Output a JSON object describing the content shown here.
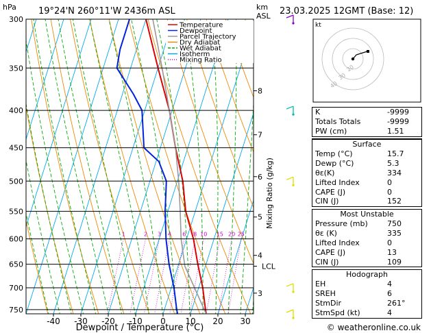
{
  "header": {
    "p_unit": "hPa",
    "location": "19°24'N  260°11'W  2436m  ASL",
    "km_unit": "km",
    "km_sub": "ASL",
    "datetime": "23.03.2025  12GMT  (Base: 12)"
  },
  "chart_data": {
    "type": "line",
    "title": "",
    "xlabel": "Dewpoint / Temperature (°C)",
    "ylabel": "hPa",
    "xlim": [
      -45,
      32
    ],
    "ylim": [
      760,
      300
    ],
    "yscale": "log",
    "pressure_ticks": [
      300,
      350,
      400,
      450,
      500,
      550,
      600,
      650,
      700,
      750
    ],
    "temp_ticks": [
      -40,
      -30,
      -20,
      -10,
      0,
      10,
      20,
      30
    ],
    "km_ticks": [
      {
        "label": "8",
        "p": 376
      },
      {
        "label": "7",
        "p": 432
      },
      {
        "label": "6",
        "p": 493
      },
      {
        "label": "5",
        "p": 560
      },
      {
        "label": "4",
        "p": 632
      },
      {
        "label": "3",
        "p": 712
      }
    ],
    "lcl": {
      "label": "LCL",
      "p": 654
    },
    "mixing_ratio_axis_label": "Mixing Ratio (g/kg)",
    "mixing_ratio_labels": [
      "1",
      "2",
      "3",
      "4",
      "6",
      "8",
      "10",
      "15",
      "20",
      "25"
    ],
    "mixing_ratio_values": [
      1,
      2,
      3,
      4,
      6,
      8,
      10,
      15,
      20,
      25
    ],
    "legend": [
      "Temperature",
      "Dewpoint",
      "Parcel Trajectory",
      "Dry Adiabat",
      "Wet Adiabat",
      "Isotherm",
      "Mixing Ratio"
    ],
    "series": [
      {
        "name": "Temperature",
        "color": "#dd0000",
        "p": [
          760,
          750,
          700,
          650,
          600,
          550,
          500,
          450,
          400,
          350,
          300
        ],
        "t": [
          15.7,
          15.0,
          11.5,
          7.0,
          2.5,
          -3.5,
          -8.0,
          -14.5,
          -21.0,
          -30.0,
          -40.0
        ]
      },
      {
        "name": "Dewpoint",
        "color": "#0022dd",
        "p": [
          760,
          750,
          700,
          650,
          600,
          550,
          500,
          470,
          450,
          400,
          380,
          350,
          330,
          300
        ],
        "t": [
          5.3,
          4.5,
          1.0,
          -3.5,
          -7.5,
          -11.0,
          -14.0,
          -19.0,
          -26.0,
          -31.0,
          -36.0,
          -45.0,
          -46.0,
          -46.0
        ]
      },
      {
        "name": "Parcel Trajectory",
        "color": "#999999",
        "p": [
          760,
          700,
          654,
          600,
          550,
          500,
          450,
          400,
          350,
          300
        ],
        "t": [
          15.7,
          8.5,
          2.5,
          -2.0,
          -5.5,
          -9.5,
          -14.5,
          -21.0,
          -28.5,
          -37.5
        ]
      }
    ],
    "colors": {
      "isotherm": "#00aaee",
      "dry_adiabat": "#ee8800",
      "wet_adiabat": "#00aa00",
      "mixing_ratio": "#cc00cc",
      "temperature": "#dd0000",
      "dewpoint": "#0022dd",
      "parcel": "#999999"
    }
  },
  "wind_barbs": [
    {
      "p": 300,
      "color": "#8800cc"
    },
    {
      "p": 400,
      "color": "#00bbaa"
    },
    {
      "p": 500,
      "color": "#dddd00"
    },
    {
      "p": 700,
      "color": "#dddd00"
    },
    {
      "p": 760,
      "color": "#dddd00"
    }
  ],
  "hodograph": {
    "label": "kt",
    "ring_labels": [
      "40",
      "30",
      "20"
    ]
  },
  "indices": [
    {
      "label": "K",
      "value": "-9999"
    },
    {
      "label": "Totals Totals",
      "value": "-9999"
    },
    {
      "label": "PW (cm)",
      "value": "1.51"
    }
  ],
  "surface": {
    "title": "Surface",
    "rows": [
      {
        "label": "Temp (°C)",
        "value": "15.7"
      },
      {
        "label": "Dewp (°C)",
        "value": "5.3"
      },
      {
        "label": "θε(K)",
        "value": "334"
      },
      {
        "label": "Lifted Index",
        "value": "0"
      },
      {
        "label": "CAPE (J)",
        "value": "0"
      },
      {
        "label": "CIN (J)",
        "value": "152"
      }
    ]
  },
  "most_unstable": {
    "title": "Most Unstable",
    "rows": [
      {
        "label": "Pressure (mb)",
        "value": "750"
      },
      {
        "label": "θε (K)",
        "value": "335"
      },
      {
        "label": "Lifted Index",
        "value": "0"
      },
      {
        "label": "CAPE (J)",
        "value": "13"
      },
      {
        "label": "CIN (J)",
        "value": "109"
      }
    ]
  },
  "hodograph_table": {
    "title": "Hodograph",
    "rows": [
      {
        "label": "EH",
        "value": "4"
      },
      {
        "label": "SREH",
        "value": "6"
      },
      {
        "label": "StmDir",
        "value": "261°"
      },
      {
        "label": "StmSpd (kt)",
        "value": "4"
      }
    ]
  },
  "copyright": "© weatheronline.co.uk"
}
